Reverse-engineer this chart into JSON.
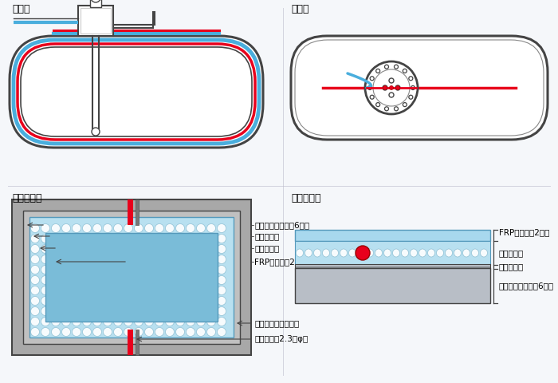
{
  "bg_color": "#f5f7fa",
  "red": "#e8001c",
  "blue": "#4aaedd",
  "dark_gray": "#444444",
  "mid_gray": "#888888",
  "light_gray": "#cccccc",
  "steel_color": "#b8bec6",
  "frp_color": "#8ecfe8",
  "frp_top_color": "#a8d8ee",
  "bubble_color": "#c0e8f0",
  "concrete_outer": "#aaaaaa",
  "concrete_inner": "#c0c0c0",
  "label_断面図": "断面図",
  "label_俯瞰図": "俯瞰図",
  "label_詳細俯瞰図": "詳細俯瞰図",
  "label_詳細断面図": "詳細断面図",
  "label_sensor": "センサー（2.3㎜φ）",
  "label_polyester": "ポリエステルパイプ",
  "label_frp": "FRPシート（2㎜）",
  "label_taikuro": "立体クロス",
  "label_primer": "プライマー",
  "label_tank_steel": "タンク鋼板部分（6㎜）"
}
